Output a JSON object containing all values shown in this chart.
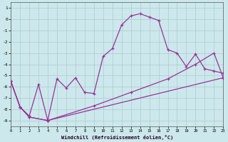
{
  "xlabel": "Windchill (Refroidissement éolien,°C)",
  "xlim": [
    0,
    23
  ],
  "ylim": [
    -9.5,
    1.5
  ],
  "yticks": [
    1,
    0,
    -1,
    -2,
    -3,
    -4,
    -5,
    -6,
    -7,
    -8,
    -9
  ],
  "xticks": [
    0,
    1,
    2,
    3,
    4,
    5,
    6,
    7,
    8,
    9,
    10,
    11,
    12,
    13,
    14,
    15,
    16,
    17,
    18,
    19,
    20,
    21,
    22,
    23
  ],
  "bg_color": "#cce8ec",
  "grid_color": "#aacccc",
  "line_color": "#993399",
  "line1_x": [
    0,
    1,
    2,
    3,
    4,
    5,
    6,
    7,
    8,
    9,
    10,
    11,
    12,
    13,
    14,
    15,
    16,
    17,
    18,
    19,
    20,
    21,
    22,
    23
  ],
  "line1_y": [
    -5.5,
    -7.8,
    -8.6,
    -5.8,
    -9.0,
    -5.3,
    -6.1,
    -5.2,
    -6.5,
    -6.6,
    -3.3,
    -2.6,
    -0.5,
    0.3,
    0.5,
    0.2,
    -0.1,
    -2.7,
    -3.0,
    -4.2,
    -3.1,
    -4.4,
    -4.6,
    -4.8
  ],
  "line2_x": [
    0,
    1,
    2,
    4,
    23
  ],
  "line2_y": [
    -5.5,
    -7.8,
    -8.7,
    -9.0,
    -5.2
  ],
  "line3_x": [
    0,
    1,
    2,
    4,
    9,
    13,
    17,
    20,
    22,
    23
  ],
  "line3_y": [
    -5.5,
    -7.8,
    -8.7,
    -9.0,
    -7.7,
    -6.5,
    -5.3,
    -4.0,
    -3.0,
    -5.2
  ]
}
